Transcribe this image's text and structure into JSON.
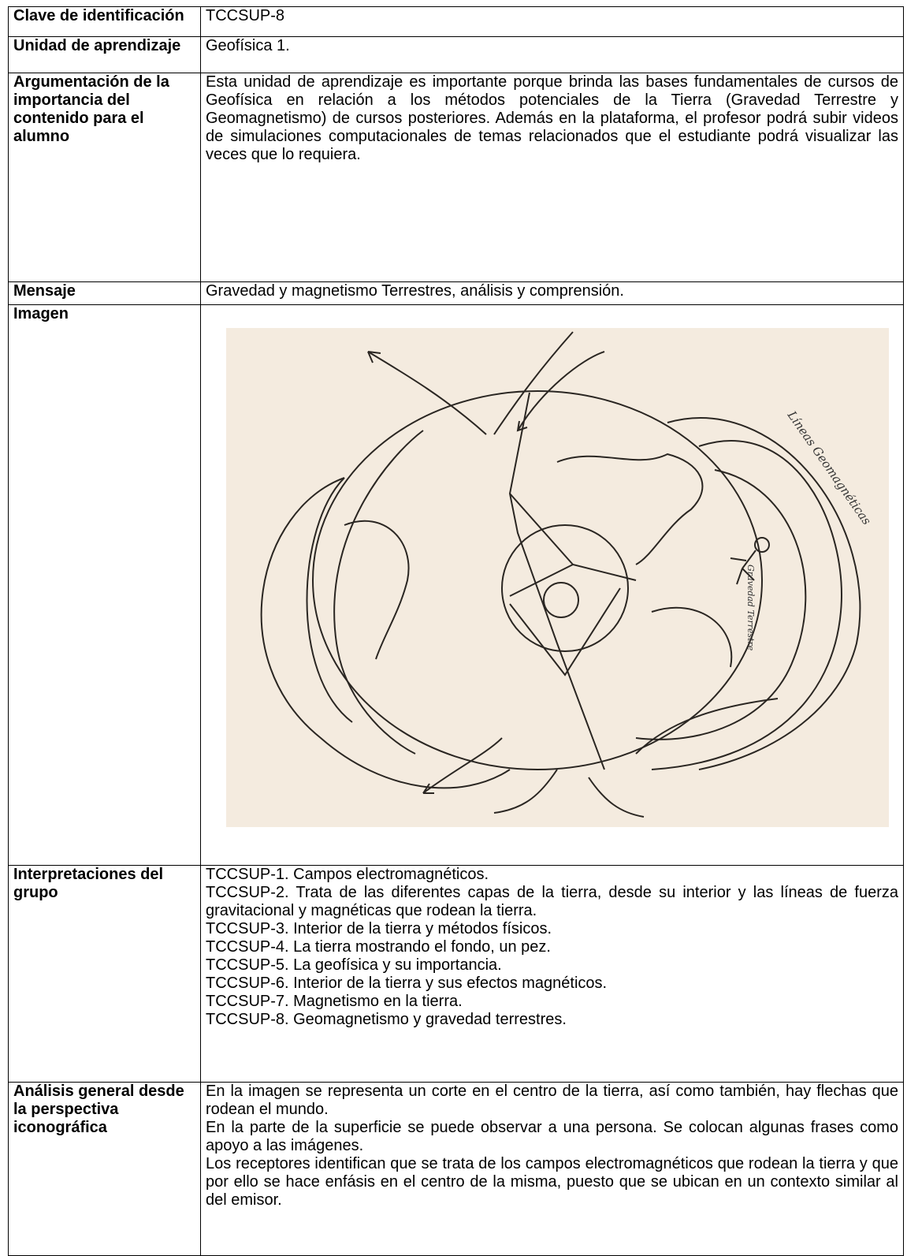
{
  "table": {
    "rows": [
      {
        "label": "Clave de identificación",
        "content": "TCCSUP-8"
      },
      {
        "label": "Unidad de aprendizaje",
        "content": "Geofísica 1."
      },
      {
        "label": "Argumentación de la importancia del contenido para el alumno",
        "content": "Esta unidad de aprendizaje es importante porque brinda las bases fundamentales de cursos de Geofísica en relación a los métodos potenciales de la Tierra (Gravedad Terrestre y Geomagnetismo) de cursos posteriores. Además en la plataforma, el profesor podrá subir videos de simulaciones computacionales de temas relacionados que el estudiante podrá visualizar las veces que lo requiera."
      },
      {
        "label": "Mensaje",
        "content": "Gravedad y magnetismo Terrestres, análisis y comprensión."
      },
      {
        "label": "Imagen",
        "annotations": [
          "Líneas Geomagnéticas",
          "Gravedad Terrestre"
        ]
      },
      {
        "label": "Interpretaciones del grupo",
        "items": [
          "TCCSUP-1. Campos electromagnéticos.",
          "TCCSUP-2. Trata de las diferentes capas de la tierra, desde su interior y las líneas de fuerza gravitacional y magnéticas que rodean la tierra.",
          "TCCSUP-3. Interior de la tierra y métodos físicos.",
          "TCCSUP-4. La tierra mostrando el fondo, un pez.",
          "TCCSUP-5. La geofísica y su importancia.",
          "TCCSUP-6. Interior de la tierra y sus efectos magnéticos.",
          "TCCSUP-7. Magnetismo en la tierra.",
          "TCCSUP-8. Geomagnetismo y gravedad terrestres."
        ]
      },
      {
        "label": "Análisis general desde la perspectiva iconográfica",
        "items": [
          "En la imagen se representa un corte en el centro de la tierra, así como también, hay flechas que rodean el mundo.",
          "En la parte de la superficie se puede observar a una persona. Se colocan algunas frases como apoyo a las imágenes.",
          "Los receptores identifican que se trata de los campos electromagnéticos que rodean la tierra y que por ello se hace enfásis en el centro de la misma, puesto que se ubican en un contexto similar al del emisor."
        ]
      }
    ]
  }
}
